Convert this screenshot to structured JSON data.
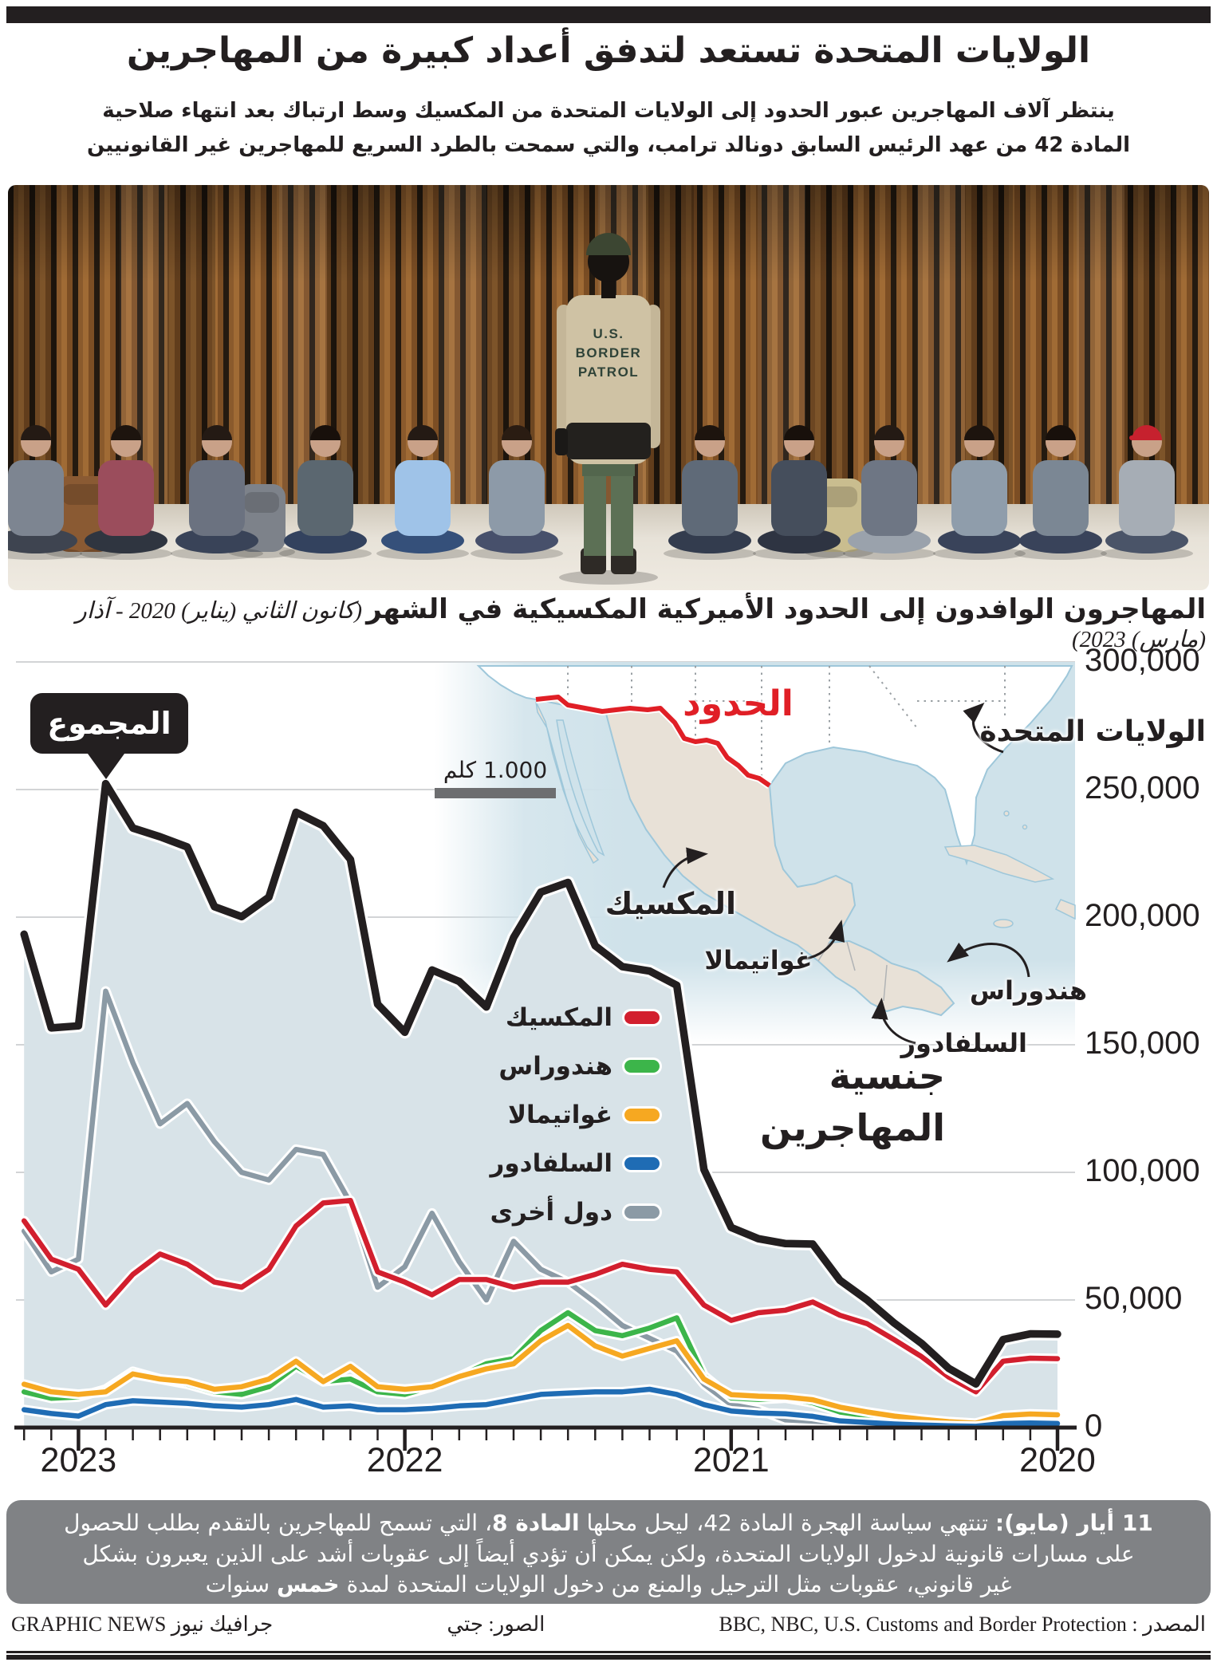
{
  "header": {
    "title": "الولايات المتحدة تستعد لتدفق أعداد كبيرة من المهاجرين",
    "subtitle_lines": [
      "ينتظر آلاف المهاجرين عبور الحدود إلى الولايات المتحدة من المكسيك وسط ارتباك بعد انتهاء صلاحية",
      "المادة 42 من عهد الرئيس السابق دونالد ترامب، والتي سمحت بالطرد السريع للمهاجرين غير القانونيين"
    ]
  },
  "photo": {
    "patrol_text_lines": [
      "U.S.",
      "BORDER",
      "PATROL"
    ]
  },
  "chart": {
    "title_main": "المهاجرون الوافدون إلى الحدود الأميركية المكسيكية في الشهر",
    "title_period": "(كانون الثاني (يناير) 2020 - آذار (مارس) 2023)",
    "total_label": "المجموع",
    "nationality_line1": "جنسية",
    "nationality_line2": "المهاجرين",
    "y_ticks": [
      "300,000",
      "250,000",
      "200,000",
      "150,000",
      "100,000",
      "50,000",
      "0"
    ],
    "x_years": [
      "2023",
      "2022",
      "2021",
      "2020"
    ],
    "legend": [
      {
        "label": "المكسيك",
        "color": "#d21f2e"
      },
      {
        "label": "هندوراس",
        "color": "#3cb54a"
      },
      {
        "label": "غواتيمالا",
        "color": "#f6a821"
      },
      {
        "label": "السلفادور",
        "color": "#1f6cb4"
      },
      {
        "label": "دول أخرى",
        "color": "#8b9aa5"
      }
    ],
    "map": {
      "border_label": "الحدود",
      "us_label": "الولايات المتحدة",
      "mexico_label": "المكسيك",
      "guatemala_label": "غواتيمالا",
      "honduras_label": "هندوراس",
      "el_salvador_label": "السلفادور",
      "scale_label": "1.000 كلم"
    }
  },
  "chart_data": {
    "type": "line",
    "title": "المهاجرون الوافدون إلى الحدود الأميركية المكسيكية في الشهر (كانون الثاني (يناير) 2020 - آذار (مارس) 2023)",
    "x_axis_direction": "right-to-left (Jan 2020 at right edge, Mar 2023 at left edge)",
    "ylim": [
      0,
      300000
    ],
    "y_tick_values": [
      0,
      50000,
      100000,
      150000,
      200000,
      250000,
      300000
    ],
    "grid": true,
    "legend_position": "center-left inside plot",
    "months": [
      "2020-01",
      "2020-02",
      "2020-03",
      "2020-04",
      "2020-05",
      "2020-06",
      "2020-07",
      "2020-08",
      "2020-09",
      "2020-10",
      "2020-11",
      "2020-12",
      "2021-01",
      "2021-02",
      "2021-03",
      "2021-04",
      "2021-05",
      "2021-06",
      "2021-07",
      "2021-08",
      "2021-09",
      "2021-10",
      "2021-11",
      "2021-12",
      "2022-01",
      "2022-02",
      "2022-03",
      "2022-04",
      "2022-05",
      "2022-06",
      "2022-07",
      "2022-08",
      "2022-09",
      "2022-10",
      "2022-11",
      "2022-12",
      "2023-01",
      "2023-02",
      "2023-03"
    ],
    "series": [
      {
        "name": "total",
        "label_ar": "المجموع",
        "color": "#231f20",
        "area_fill": "#d8e3e8",
        "values": [
          36600,
          36700,
          34500,
          17100,
          23200,
          33000,
          40900,
          50000,
          57700,
          71900,
          72100,
          74000,
          78400,
          101100,
          173300,
          178900,
          180600,
          188800,
          213600,
          209800,
          192000,
          164800,
          174800,
          179300,
          154900,
          165900,
          222600,
          235800,
          241100,
          207800,
          200200,
          204100,
          227500,
          231500,
          234900,
          252300,
          157400,
          156600,
          193300
        ]
      },
      {
        "name": "other",
        "label_ar": "دول أخرى",
        "color": "#8b9aa5",
        "values": [
          500,
          600,
          700,
          500,
          600,
          800,
          1000,
          1500,
          2000,
          2500,
          3000,
          7000,
          9000,
          17000,
          30000,
          35000,
          40000,
          49000,
          57000,
          62000,
          73000,
          50000,
          65000,
          84000,
          63000,
          55000,
          88000,
          107000,
          109000,
          97000,
          100000,
          112000,
          127000,
          119000,
          143000,
          171000,
          66000,
          61000,
          77000
        ]
      },
      {
        "name": "honduras",
        "label_ar": "هندوراس",
        "color": "#3cb54a",
        "values": [
          3000,
          3300,
          3400,
          1200,
          1600,
          2300,
          3300,
          4600,
          6100,
          9700,
          11600,
          11000,
          11600,
          20400,
          43000,
          39000,
          36000,
          38000,
          45000,
          38000,
          27000,
          25000,
          20000,
          16000,
          13000,
          14000,
          19000,
          18000,
          24000,
          16000,
          13000,
          14000,
          17000,
          19000,
          22000,
          15000,
          12000,
          11500,
          14000
        ]
      },
      {
        "name": "guatemala",
        "label_ar": "غواتيمالا",
        "color": "#f6a821",
        "values": [
          5000,
          5300,
          4700,
          1700,
          2300,
          3300,
          4500,
          6100,
          8000,
          10900,
          12000,
          12300,
          12900,
          19000,
          34000,
          31000,
          28000,
          32000,
          40000,
          34000,
          25000,
          23000,
          20000,
          16000,
          15000,
          16000,
          24000,
          18000,
          26000,
          19000,
          16000,
          15000,
          18000,
          19000,
          21000,
          14000,
          13000,
          14000,
          17000
        ]
      },
      {
        "name": "el_salvador",
        "label_ar": "السلفادور",
        "color": "#1f6cb4",
        "values": [
          1600,
          1800,
          1600,
          500,
          700,
          1000,
          1400,
          2000,
          2600,
          4400,
          5400,
          5700,
          6500,
          9000,
          13000,
          15000,
          14000,
          14000,
          13500,
          13000,
          11000,
          9000,
          8500,
          7500,
          7000,
          7000,
          8500,
          8000,
          11000,
          9000,
          8000,
          8500,
          9500,
          10000,
          10500,
          9000,
          4500,
          5500,
          7000
        ]
      },
      {
        "name": "mexico",
        "label_ar": "المكسيك",
        "color": "#d21f2e",
        "values": [
          27000,
          27200,
          26000,
          14000,
          19800,
          27800,
          34400,
          40700,
          44000,
          49200,
          46000,
          45000,
          42000,
          48000,
          61000,
          62000,
          64000,
          60000,
          57000,
          57000,
          55000,
          58000,
          58000,
          52000,
          57000,
          61000,
          89000,
          88000,
          79000,
          62000,
          55000,
          57000,
          64000,
          68000,
          60000,
          48000,
          62000,
          66000,
          81000
        ]
      }
    ]
  },
  "footer": {
    "lines": [
      [
        {
          "t": "11 أيار (مايو):",
          "b": true
        },
        {
          "t": " تنتهي سياسة الهجرة المادة 42، ليحل محلها ",
          "b": false
        },
        {
          "t": "المادة 8",
          "b": true
        },
        {
          "t": "، التي تسمح للمهاجرين بالتقدم بطلب للحصول",
          "b": false
        }
      ],
      [
        {
          "t": "على مسارات قانونية لدخول الولايات المتحدة، ولكن يمكن أن تؤدي أيضاً إلى عقوبات أشد على الذين يعبرون بشكل",
          "b": false
        }
      ],
      [
        {
          "t": "غير قانوني، عقوبات مثل الترحيل والمنع من دخول الولايات المتحدة لمدة ",
          "b": false
        },
        {
          "t": "خمس",
          "b": true
        },
        {
          "t": " سنوات",
          "b": false
        }
      ]
    ]
  },
  "credits": {
    "source_label": "المصدر :",
    "source_value": "BBC, NBC, U.S. Customs and Border Protection",
    "photos": "الصور: جتي",
    "brand_latin": "GRAPHIC NEWS",
    "brand_arabic": "جرافيك نيوز"
  },
  "colors": {
    "ink": "#231f20",
    "area_fill": "#d8e3e8",
    "gridline": "#c4c6c8",
    "map_land": "#e8e1d7",
    "ocean": "#cfe2ea",
    "coast": "#9ec7da",
    "border_line": "#e01f26",
    "footer_bg": "#808285",
    "wall_rust": "#8a5a2c"
  }
}
